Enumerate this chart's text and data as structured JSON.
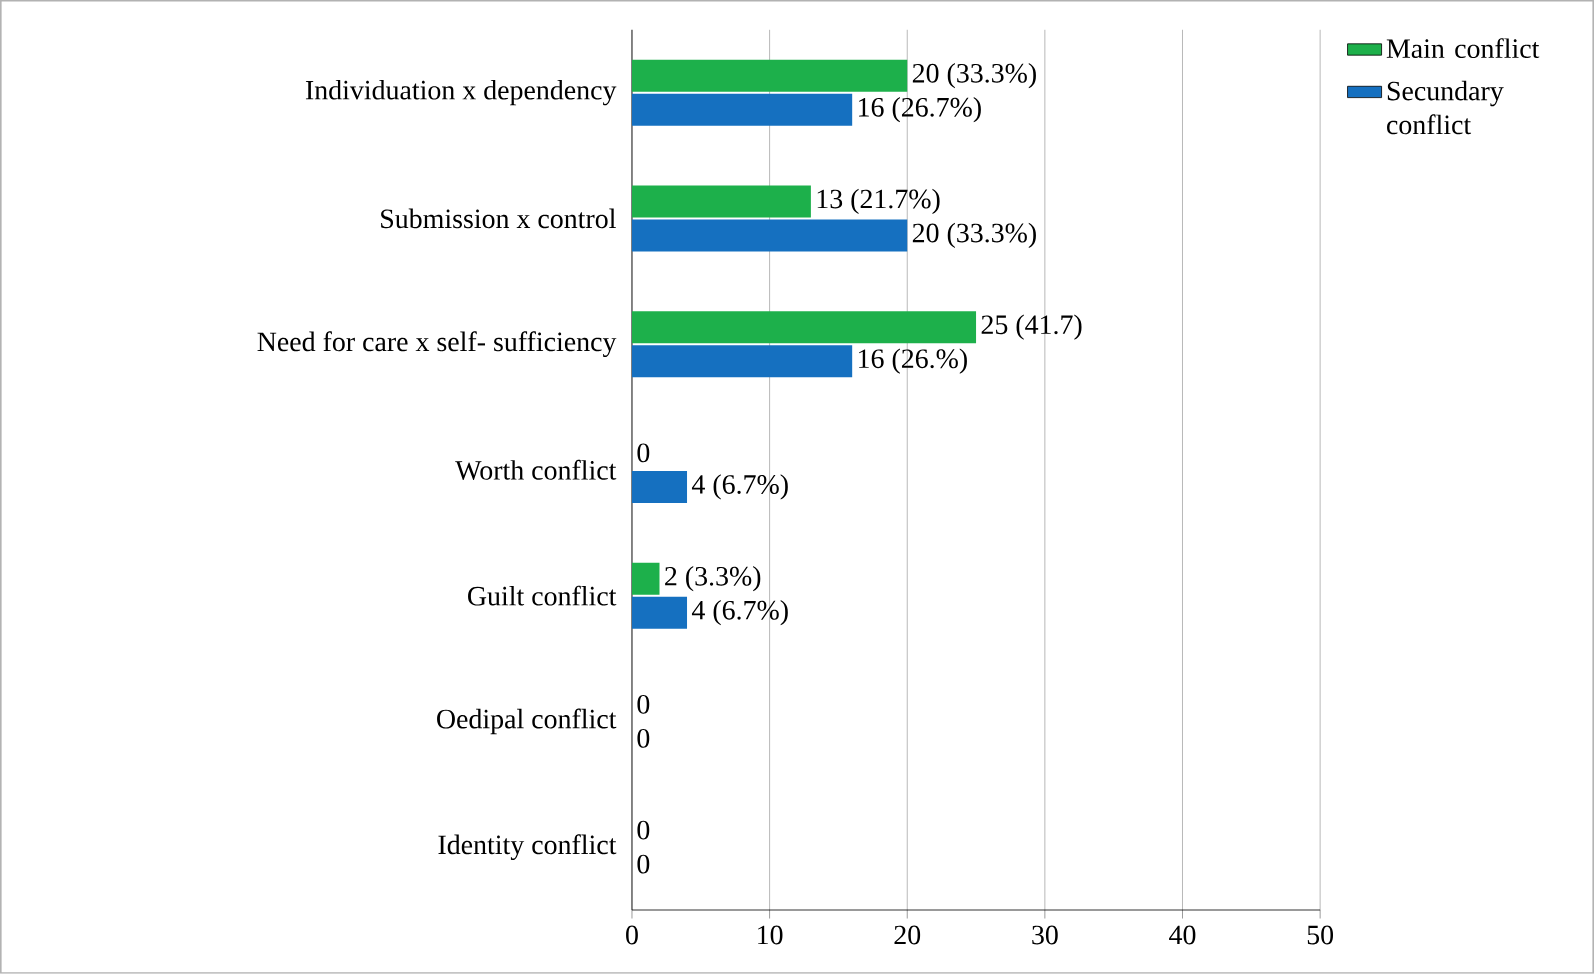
{
  "chart_data": {
    "type": "bar",
    "orientation": "horizontal",
    "categories": [
      "Individuation x dependency",
      "Submission x control",
      "Need for care x self- sufficiency",
      "Worth conflict",
      "Guilt conflict",
      "Oedipal conflict",
      "Identity conflict"
    ],
    "series": [
      {
        "name": "Main conflict",
        "color": "#1db04b",
        "values": [
          20,
          13,
          25,
          0,
          2,
          0,
          0
        ],
        "value_labels": [
          "20 (33.3%)",
          "13 (21.7%)",
          "25 (41.7)",
          "0",
          "2 (3.3%)",
          "0",
          "0"
        ]
      },
      {
        "name": "Secundary conflict",
        "color": "#1570c0",
        "values": [
          16,
          20,
          16,
          4,
          4,
          0,
          0
        ],
        "value_labels": [
          "16 (26.7%)",
          "20 (33.3%)",
          "16 (26.%)",
          "4 (6.7%)",
          "4 (6.7%)",
          "0",
          "0"
        ]
      }
    ],
    "xlim": [
      0,
      50
    ],
    "xticks": [
      0,
      10,
      20,
      30,
      40,
      50
    ],
    "grid": "x",
    "legend": "right"
  }
}
